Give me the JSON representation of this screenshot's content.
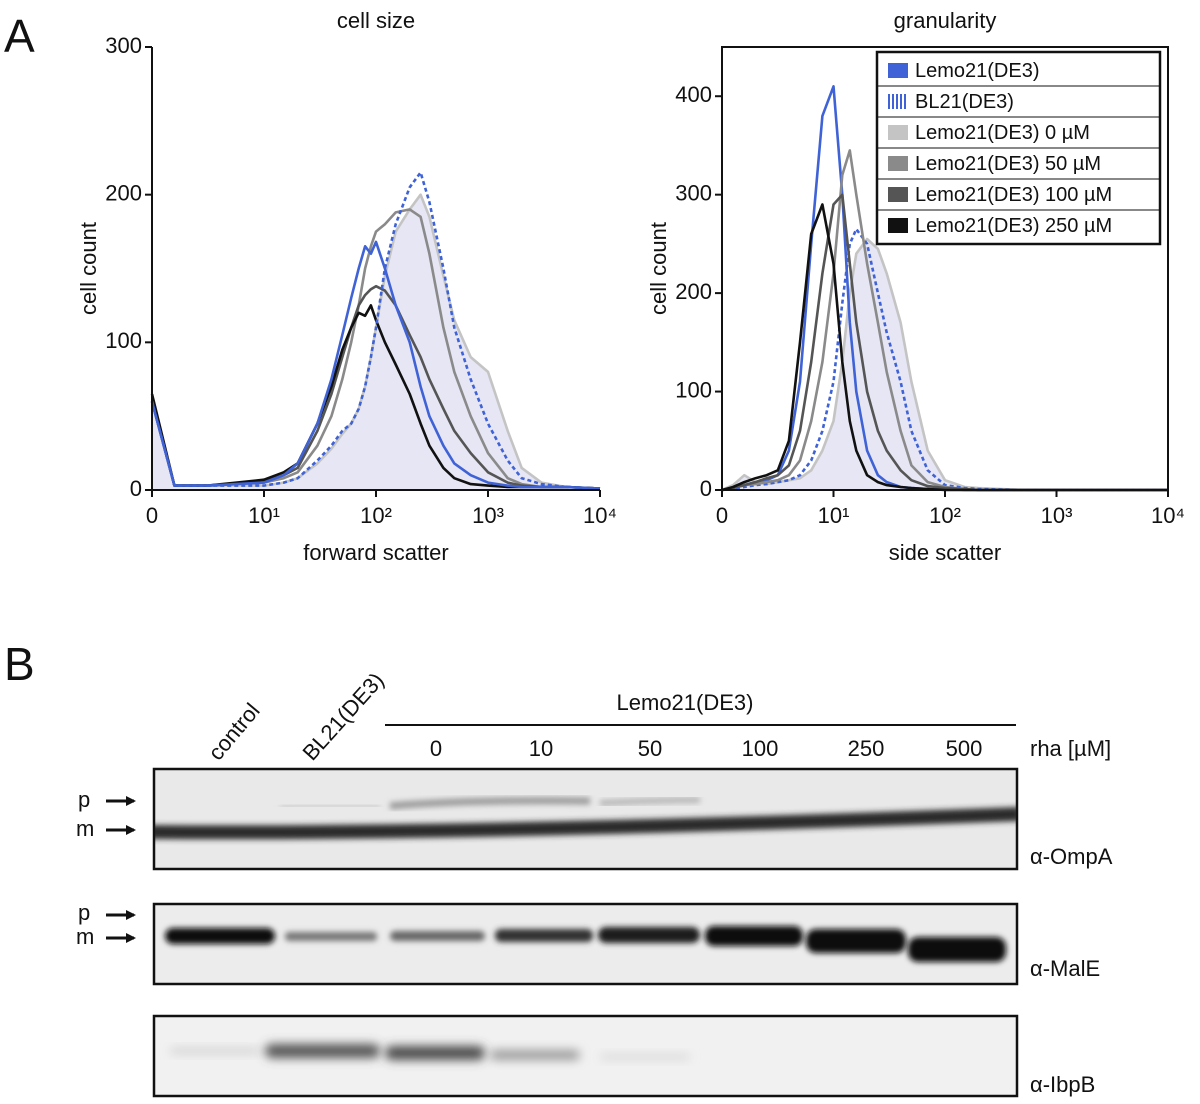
{
  "panel_labels": {
    "a": "A",
    "b": "B"
  },
  "chart_data": [
    {
      "type": "line",
      "title": "cell size",
      "x_label": "forward scatter",
      "y_label": "cell count",
      "xscale": "logicle",
      "box": false,
      "xlim": [
        0,
        10000
      ],
      "ylim": [
        0,
        300
      ],
      "xticks": [
        0,
        {
          "value": 10,
          "label": "10¹"
        },
        {
          "value": 100,
          "label": "10²"
        },
        {
          "value": 1000,
          "label": "10³"
        },
        {
          "value": 10000,
          "label": "10⁴"
        }
      ],
      "yticks": [
        0,
        100,
        200,
        300
      ],
      "x": [
        0,
        2,
        5,
        10,
        15,
        20,
        30,
        40,
        50,
        60,
        70,
        80,
        90,
        100,
        120,
        150,
        200,
        250,
        300,
        400,
        500,
        700,
        1000,
        1500,
        2000,
        3000,
        5000,
        10000
      ],
      "series": [
        {
          "color": "#c4c4c4",
          "fill": "#e6e6f4",
          "values": [
            60,
            3,
            3,
            3,
            5,
            8,
            18,
            28,
            38,
            45,
            55,
            70,
            90,
            110,
            145,
            175,
            190,
            200,
            185,
            145,
            115,
            90,
            80,
            40,
            15,
            5,
            2,
            1
          ]
        },
        {
          "color": "#8a8a8a",
          "values": [
            60,
            3,
            3,
            5,
            8,
            12,
            30,
            50,
            75,
            100,
            125,
            150,
            165,
            175,
            180,
            188,
            190,
            185,
            160,
            110,
            80,
            50,
            25,
            8,
            4,
            2,
            2,
            1
          ]
        },
        {
          "color": "#555555",
          "values": [
            60,
            3,
            3,
            6,
            10,
            15,
            40,
            65,
            90,
            110,
            125,
            132,
            136,
            138,
            135,
            125,
            105,
            90,
            75,
            55,
            40,
            25,
            12,
            5,
            3,
            2,
            2,
            1
          ]
        },
        {
          "color": "#111111",
          "values": [
            65,
            3,
            3,
            7,
            12,
            18,
            45,
            70,
            95,
            110,
            120,
            118,
            125,
            115,
            100,
            85,
            65,
            45,
            30,
            15,
            8,
            4,
            3,
            2,
            2,
            2,
            2,
            1
          ]
        },
        {
          "color": "#3f63d6",
          "dash": true,
          "values": [
            60,
            3,
            3,
            3,
            5,
            8,
            20,
            30,
            40,
            45,
            55,
            70,
            90,
            110,
            150,
            180,
            205,
            215,
            195,
            150,
            110,
            75,
            45,
            20,
            8,
            4,
            2,
            1
          ]
        },
        {
          "color": "#3f63d6",
          "values": [
            60,
            3,
            3,
            5,
            10,
            18,
            45,
            75,
            105,
            130,
            150,
            165,
            160,
            168,
            150,
            125,
            100,
            70,
            50,
            30,
            18,
            10,
            5,
            3,
            2,
            2,
            2,
            1
          ]
        }
      ]
    },
    {
      "type": "line",
      "title": "granularity",
      "x_label": "side scatter",
      "y_label": "cell count",
      "xscale": "logicle",
      "box": true,
      "legend": "upper right",
      "xlim": [
        0,
        10000
      ],
      "ylim": [
        0,
        450
      ],
      "xticks": [
        0,
        {
          "value": 10,
          "label": "10¹"
        },
        {
          "value": 100,
          "label": "10²"
        },
        {
          "value": 1000,
          "label": "10³"
        },
        {
          "value": 10000,
          "label": "10⁴"
        }
      ],
      "yticks": [
        0,
        100,
        200,
        300,
        400
      ],
      "x": [
        0,
        1,
        2,
        3,
        4,
        5,
        6,
        7,
        8,
        9,
        10,
        12,
        14,
        16,
        20,
        25,
        30,
        40,
        50,
        70,
        100,
        150,
        200,
        500,
        1000,
        10000
      ],
      "series": [
        {
          "name": "Lemo21(DE3)",
          "color": "#3f63d6",
          "values": [
            0,
            2,
            5,
            8,
            10,
            15,
            40,
            110,
            250,
            380,
            410,
            300,
            170,
            100,
            40,
            15,
            8,
            3,
            2,
            1,
            1,
            0,
            0,
            0,
            0,
            0
          ]
        },
        {
          "name": "BL21(DE3)",
          "color": "#3f63d6",
          "dash": true,
          "values": [
            0,
            1,
            3,
            5,
            6,
            8,
            10,
            15,
            30,
            60,
            110,
            190,
            250,
            265,
            250,
            200,
            160,
            110,
            60,
            20,
            5,
            2,
            1,
            0,
            0,
            0
          ]
        },
        {
          "name": "Lemo21(DE3) 0 µM",
          "color": "#c4c4c4",
          "fill": "#e6e6f4",
          "values": [
            0,
            5,
            15,
            8,
            6,
            8,
            10,
            12,
            20,
            40,
            70,
            130,
            200,
            240,
            255,
            245,
            220,
            170,
            110,
            40,
            10,
            3,
            2,
            0,
            0,
            0
          ]
        },
        {
          "name": "Lemo21(DE3) 50 µM",
          "color": "#8a8a8a",
          "values": [
            0,
            2,
            5,
            6,
            8,
            10,
            15,
            30,
            70,
            130,
            220,
            320,
            345,
            300,
            230,
            170,
            120,
            60,
            25,
            8,
            3,
            1,
            0,
            0,
            0,
            0
          ]
        },
        {
          "name": "Lemo21(DE3) 100 µM",
          "color": "#555555",
          "values": [
            0,
            2,
            5,
            8,
            12,
            15,
            25,
            60,
            130,
            220,
            290,
            300,
            230,
            170,
            100,
            60,
            40,
            20,
            10,
            4,
            2,
            1,
            0,
            0,
            0,
            0
          ]
        },
        {
          "name": "Lemo21(DE3) 250 µM",
          "color": "#111111",
          "values": [
            0,
            3,
            8,
            12,
            15,
            20,
            50,
            150,
            260,
            290,
            230,
            130,
            70,
            40,
            15,
            8,
            5,
            3,
            2,
            1,
            0,
            0,
            0,
            0,
            0,
            0
          ]
        }
      ]
    }
  ],
  "blot": {
    "lanes": [
      "control",
      "BL21(DE3)"
    ],
    "group_label": "Lemo21(DE3)",
    "concentrations": [
      "0",
      "10",
      "50",
      "100",
      "250",
      "500"
    ],
    "unit_label": "rha [µM]",
    "panels": [
      {
        "antibody": "α-OmpA",
        "markers": [
          "p",
          "m"
        ]
      },
      {
        "antibody": "α-MalE",
        "markers": [
          "p",
          "m"
        ]
      },
      {
        "antibody": "α-IbpB"
      }
    ]
  }
}
